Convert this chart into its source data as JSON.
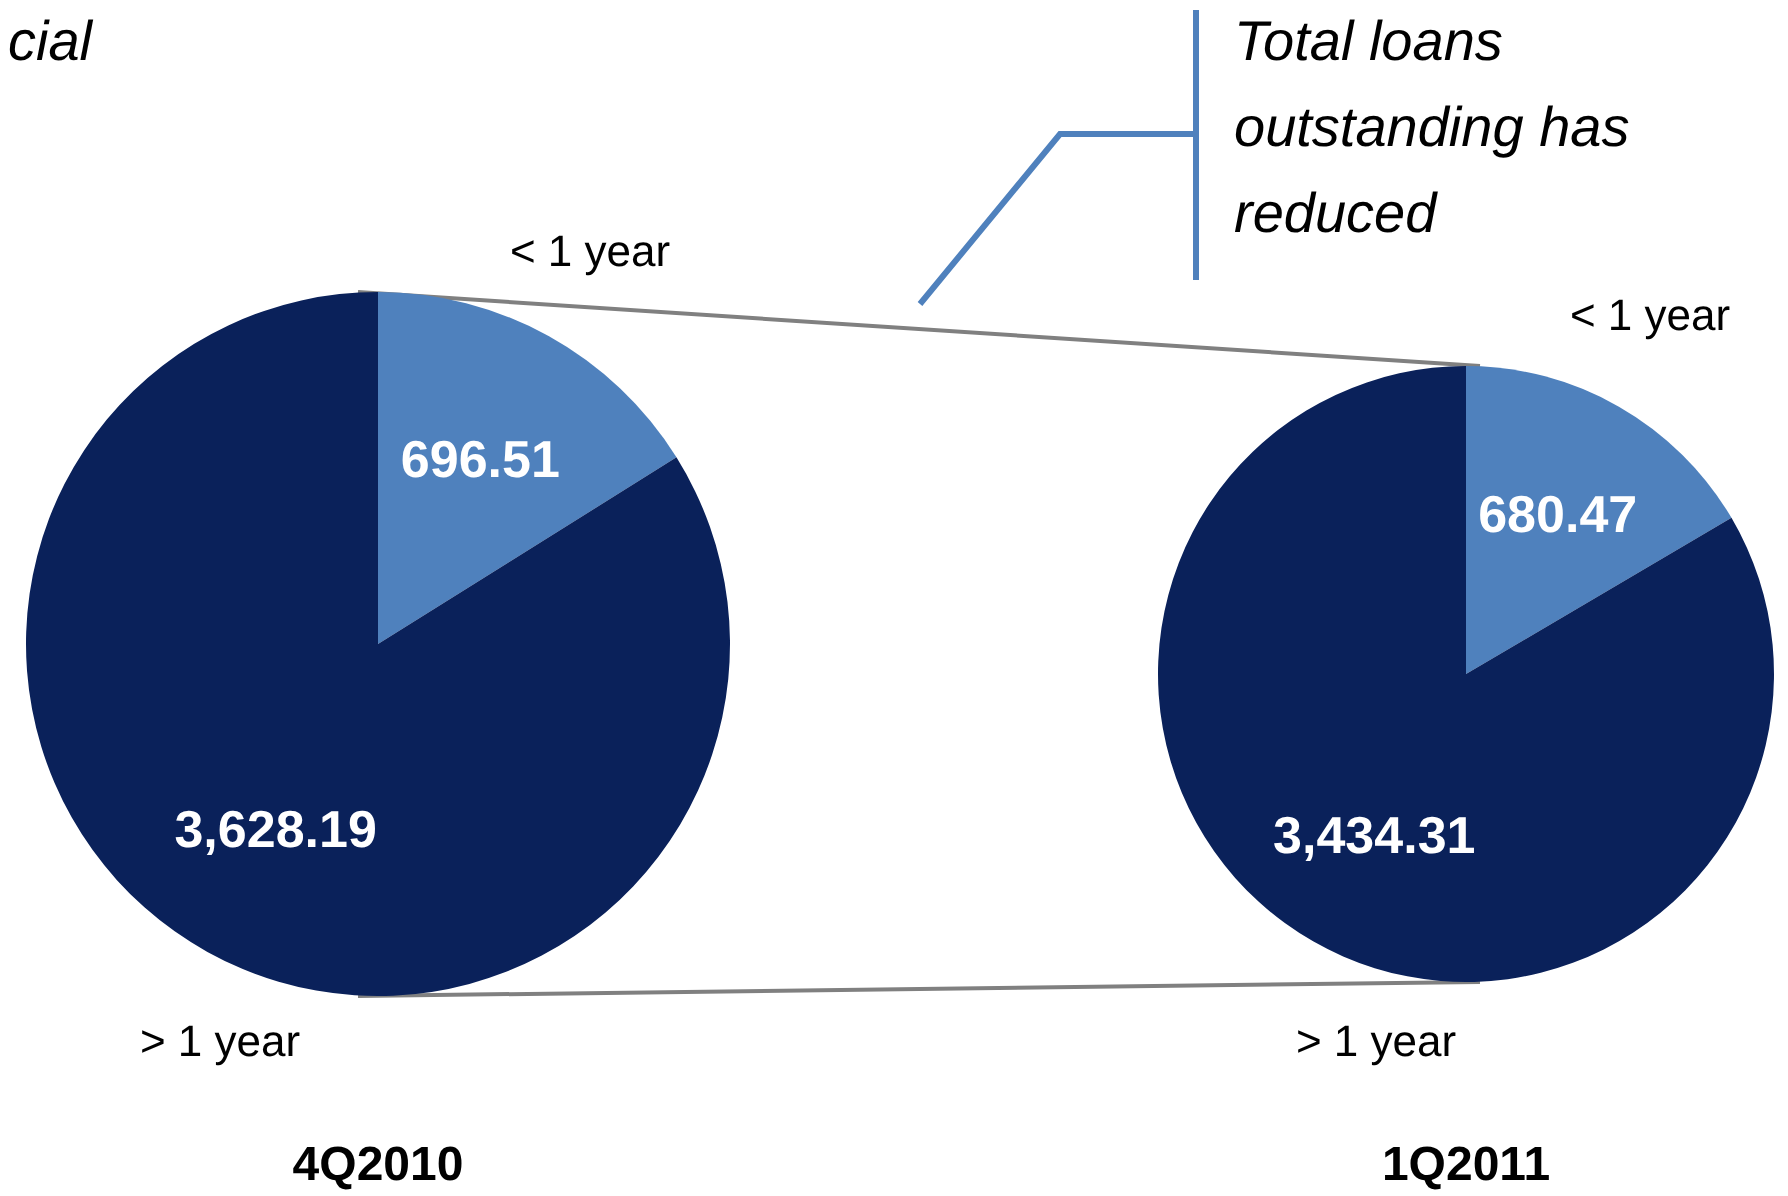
{
  "chart_data": [
    {
      "type": "pie",
      "title": "4Q2010",
      "categories": [
        "< 1 year",
        "> 1 year"
      ],
      "values": [
        696.51,
        3628.19
      ],
      "colors": [
        "#4f81bd",
        "#0a215a"
      ],
      "value_labels": [
        "696.51",
        "3,628.19"
      ],
      "annotations": [
        "cial"
      ]
    },
    {
      "type": "pie",
      "title": "1Q2011",
      "categories": [
        "< 1 year",
        "> 1 year"
      ],
      "values": [
        680.47,
        3434.31
      ],
      "colors": [
        "#4f81bd",
        "#0a215a"
      ],
      "value_labels": [
        "680.47",
        "3,434.31"
      ],
      "annotations": [
        "Total loans outstanding has reduced"
      ]
    }
  ]
}
